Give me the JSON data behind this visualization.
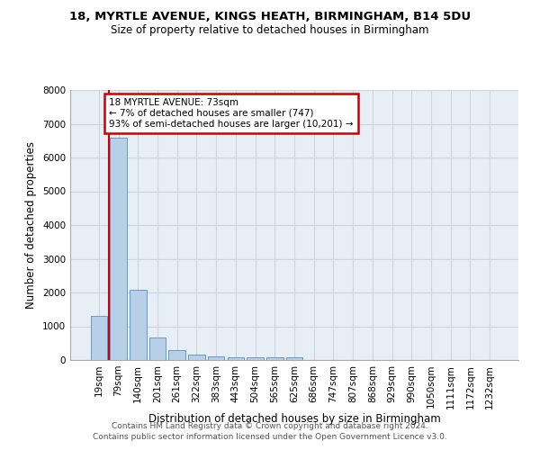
{
  "title1": "18, MYRTLE AVENUE, KINGS HEATH, BIRMINGHAM, B14 5DU",
  "title2": "Size of property relative to detached houses in Birmingham",
  "xlabel": "Distribution of detached houses by size in Birmingham",
  "ylabel": "Number of detached properties",
  "categories": [
    "19sqm",
    "79sqm",
    "140sqm",
    "201sqm",
    "261sqm",
    "322sqm",
    "383sqm",
    "443sqm",
    "504sqm",
    "565sqm",
    "625sqm",
    "686sqm",
    "747sqm",
    "807sqm",
    "868sqm",
    "929sqm",
    "990sqm",
    "1050sqm",
    "1111sqm",
    "1172sqm",
    "1232sqm"
  ],
  "values": [
    1300,
    6600,
    2080,
    660,
    290,
    150,
    100,
    80,
    70,
    70,
    70,
    0,
    0,
    0,
    0,
    0,
    0,
    0,
    0,
    0,
    0
  ],
  "bar_color": "#b8cfe8",
  "bar_edge_color": "#6699cc",
  "annotation_line1": "18 MYRTLE AVENUE: 73sqm",
  "annotation_line2": "← 7% of detached houses are smaller (747)",
  "annotation_line3": "93% of semi-detached houses are larger (10,201) →",
  "annotation_box_color": "#ffffff",
  "annotation_box_edge": "#cc0000",
  "footer1": "Contains HM Land Registry data © Crown copyright and database right 2024.",
  "footer2": "Contains public sector information licensed under the Open Government Licence v3.0.",
  "ylim": [
    0,
    8000
  ],
  "yticks": [
    0,
    1000,
    2000,
    3000,
    4000,
    5000,
    6000,
    7000,
    8000
  ],
  "grid_color": "#ccd5e0",
  "bg_color": "#e8eef5",
  "title_fontsize": 9.5,
  "subtitle_fontsize": 8.5,
  "tick_fontsize": 7.5,
  "ylabel_fontsize": 8.5,
  "xlabel_fontsize": 8.5,
  "footer_fontsize": 6.5,
  "annotation_fontsize": 7.5,
  "vline_x": 0.5,
  "vline_color": "#cc0000"
}
